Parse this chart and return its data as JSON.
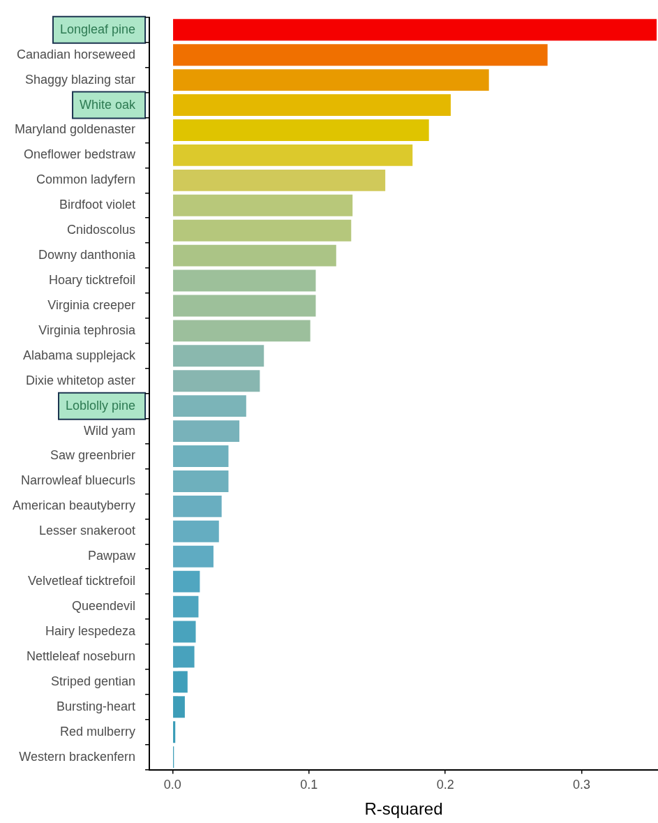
{
  "chart_data": {
    "type": "bar",
    "orientation": "horizontal",
    "xlabel": "R-squared",
    "categories": [
      "Longleaf pine",
      "Canadian horseweed",
      "Shaggy blazing star",
      "White oak",
      "Maryland goldenaster",
      "Oneflower bedstraw",
      "Common ladyfern",
      "Birdfoot violet",
      "Cnidoscolus",
      "Downy danthonia",
      "Hoary ticktrefoil",
      "Virginia creeper",
      "Virginia tephrosia",
      "Alabama supplejack",
      "Dixie whitetop aster",
      "Loblolly pine",
      "Wild yam",
      "Saw greenbrier",
      "Narrowleaf bluecurls",
      "American beautyberry",
      "Lesser snakeroot",
      "Pawpaw",
      "Velvetleaf ticktrefoil",
      "Queendevil",
      "Hairy lespedeza",
      "Nettleleaf noseburn",
      "Striped gentian",
      "Bursting-heart",
      "Red mulberry",
      "Western brackenfern"
    ],
    "values": [
      0.355,
      0.275,
      0.232,
      0.204,
      0.188,
      0.176,
      0.156,
      0.132,
      0.131,
      0.12,
      0.105,
      0.105,
      0.101,
      0.067,
      0.064,
      0.054,
      0.049,
      0.041,
      0.041,
      0.036,
      0.034,
      0.03,
      0.02,
      0.019,
      0.017,
      0.016,
      0.011,
      0.009,
      0.002,
      0.001
    ],
    "colors": [
      "#f50000",
      "#f07000",
      "#e89a00",
      "#e4b800",
      "#dfc400",
      "#dcc92c",
      "#d0c95a",
      "#b8c87a",
      "#b5c77c",
      "#abc486",
      "#9dc09a",
      "#9dc09a",
      "#9cbf9c",
      "#8ab8ae",
      "#88b6b0",
      "#7bb4b8",
      "#78b2ba",
      "#6eb0bd",
      "#6eb0bd",
      "#69aec0",
      "#65adc1",
      "#5fabc2",
      "#50a6c0",
      "#4ea5bf",
      "#49a3bd",
      "#48a2bd",
      "#409fba",
      "#3d9db8",
      "#3a9cb7",
      "#389bb6"
    ],
    "xlim": [
      -0.017,
      0.356
    ],
    "xticks": [
      {
        "value": 0,
        "label": "0.0"
      },
      0.1,
      0.2,
      0.3
    ],
    "grid": false,
    "legend": false
  }
}
